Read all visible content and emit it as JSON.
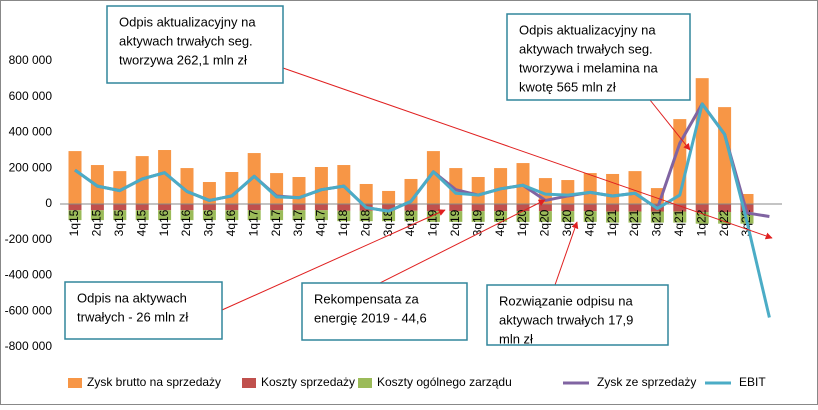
{
  "chart_data": {
    "type": "bar",
    "categories": [
      "1q15",
      "2q15",
      "3q15",
      "4q15",
      "1q16",
      "2q16",
      "3q16",
      "4q16",
      "1q17",
      "2q17",
      "3q17",
      "4q17",
      "1q18",
      "2q18",
      "3q18",
      "4q18",
      "1q19",
      "2q19",
      "3q19",
      "4q19",
      "1q20",
      "2q20",
      "3q20",
      "4q20",
      "1q21",
      "2q21",
      "3q21",
      "4q21",
      "1q22",
      "2q22",
      "3q22",
      null
    ],
    "series": [
      {
        "name": "Zysk brutto na sprzedaży",
        "color": "#f79646",
        "kind": "bar",
        "values": [
          296000,
          218000,
          184000,
          268000,
          302000,
          201000,
          123000,
          179000,
          285000,
          173000,
          151000,
          207000,
          218000,
          112000,
          73000,
          140000,
          296000,
          201000,
          151000,
          201000,
          229000,
          145000,
          134000,
          173000,
          168000,
          184000,
          89000,
          475000,
          704000,
          542000,
          56000,
          null
        ]
      },
      {
        "name": "Koszty sprzedaży",
        "color": "#c0504d",
        "kind": "bar",
        "values": [
          -35000,
          -35000,
          -35000,
          -35000,
          -35000,
          -35000,
          -35000,
          -35000,
          -35000,
          -35000,
          -35000,
          -35000,
          -38000,
          -38000,
          -38000,
          -38000,
          -40000,
          -40000,
          -40000,
          -40000,
          -40000,
          -40000,
          -40000,
          -40000,
          -42000,
          -42000,
          -42000,
          -42000,
          -45000,
          -45000,
          -45000,
          null
        ]
      },
      {
        "name": "Koszty ogólnego zarządu",
        "color": "#9bbb59",
        "kind": "bar",
        "values": [
          -55000,
          -55000,
          -55000,
          -55000,
          -55000,
          -55000,
          -55000,
          -55000,
          -55000,
          -55000,
          -55000,
          -55000,
          -58000,
          -58000,
          -58000,
          -58000,
          -60000,
          -60000,
          -60000,
          -60000,
          -60000,
          -60000,
          -60000,
          -60000,
          -62000,
          -62000,
          -62000,
          -62000,
          -65000,
          -65000,
          -65000,
          null
        ]
      },
      {
        "name": "Zysk ze sprzedaży",
        "color": "#8064a2",
        "kind": "line",
        "values": [
          190000,
          100000,
          75000,
          140000,
          175000,
          70000,
          20000,
          45000,
          155000,
          45000,
          35000,
          80000,
          100000,
          -20000,
          -40000,
          15000,
          180000,
          80000,
          50000,
          85000,
          105000,
          20000,
          45000,
          65000,
          45000,
          60000,
          -25000,
          340000,
          560000,
          390000,
          -50000,
          -70000
        ]
      },
      {
        "name": "EBIT",
        "color": "#4bacc6",
        "kind": "line",
        "values": [
          190000,
          100000,
          75000,
          140000,
          175000,
          70000,
          20000,
          45000,
          155000,
          40000,
          35000,
          80000,
          100000,
          -20000,
          -40000,
          15000,
          180000,
          60000,
          50000,
          85000,
          105000,
          55000,
          50000,
          65000,
          45000,
          60000,
          -25000,
          50000,
          560000,
          390000,
          -100000,
          -635000
        ]
      }
    ],
    "ylim": [
      -800000,
      800000
    ],
    "yticks": [
      {
        "value": 800000,
        "label": "800 000"
      },
      {
        "value": 600000,
        "label": "600 000"
      },
      {
        "value": 400000,
        "label": "400 000"
      },
      {
        "value": 200000,
        "label": "200 000"
      },
      0,
      {
        "value": -200000,
        "label": "-200 000"
      },
      {
        "value": -400000,
        "label": "-400 000"
      },
      {
        "value": -600000,
        "label": "-600 000"
      },
      {
        "value": -800000,
        "label": "-800 000"
      }
    ],
    "grid": false,
    "annotations": [
      {
        "lines": [
          "Odpis aktualizacyjny na",
          "aktywach trwałych seg.",
          "tworzywa 262,1 mln zł"
        ]
      },
      {
        "lines": [
          "Odpis aktualizacyjny na",
          "aktywach trwałych seg.",
          "tworzywa i melamina na",
          "kwotę 565 mln zł"
        ]
      },
      {
        "lines": [
          "Odpis na aktywach",
          "trwałych - 26 mln zł"
        ]
      },
      {
        "lines": [
          "Rekompensata za",
          "energię 2019 - 44,6"
        ]
      },
      {
        "lines": [
          "Rozwiązanie odpisu na",
          "aktywach trwałych 17,9",
          "mln zł"
        ]
      }
    ]
  }
}
